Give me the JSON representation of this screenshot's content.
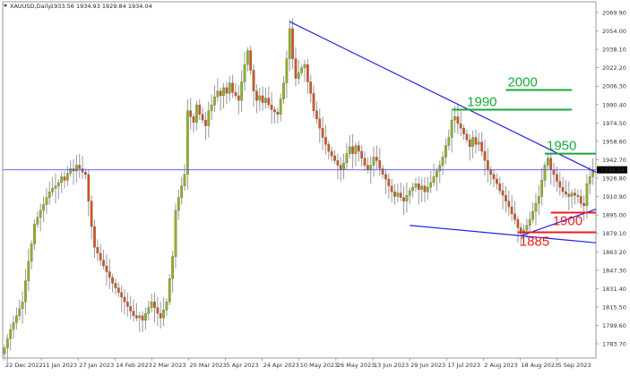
{
  "header": {
    "symbol": "XAUUSD,Daily",
    "ohlc": "1933.56 1934.93 1929.84 1934.04",
    "menu_icon": "triangle-down-icon"
  },
  "chart_data": {
    "type": "candlestick",
    "title": "XAUUSD,Daily",
    "ylim": [
      1775,
      2075
    ],
    "grid": false,
    "y_ticks": [
      "2069.90",
      "2054.00",
      "2038.10",
      "2022.20",
      "2006.30",
      "1990.40",
      "1974.50",
      "1958.60",
      "1942.70",
      "1926.80",
      "1910.90",
      "1895.00",
      "1879.10",
      "1863.20",
      "1847.30",
      "1831.40",
      "1815.50",
      "1799.60",
      "1783.70"
    ],
    "x_ticks": [
      "22 Dec 2022",
      "11 Jan 2023",
      "27 Jan 2023",
      "14 Feb 2023",
      "2 Mar 2023",
      "20 Mar 2023",
      "5 Apr 2023",
      "24 Apr 2023",
      "10 May 2023",
      "26 May 2023",
      "13 Jun 2023",
      "29 Jun 2023",
      "17 Jul 2023",
      "2 Aug 2023",
      "18 Aug 2023",
      "5 Sep 2023"
    ],
    "current_price": "1934.04",
    "closes": [
      1780,
      1788,
      1796,
      1802,
      1808,
      1814,
      1820,
      1838,
      1855,
      1870,
      1887,
      1893,
      1899,
      1904,
      1910,
      1915,
      1918,
      1920,
      1923,
      1928,
      1925,
      1931,
      1935,
      1933,
      1938,
      1935,
      1932,
      1930,
      1907,
      1885,
      1867,
      1862,
      1856,
      1851,
      1846,
      1841,
      1836,
      1832,
      1828,
      1824,
      1820,
      1816,
      1812,
      1808,
      1806,
      1808,
      1804,
      1810,
      1815,
      1820,
      1815,
      1810,
      1806,
      1813,
      1820,
      1840,
      1859,
      1899,
      1910,
      1920,
      1930,
      1985,
      1980,
      1975,
      1990,
      1982,
      1977,
      1972,
      1985,
      1990,
      1997,
      2002,
      1998,
      2005,
      2000,
      2009,
      2001,
      1998,
      1994,
      2010,
      2025,
      2037,
      2020,
      2002,
      1994,
      1998,
      1992,
      1996,
      1990,
      1986,
      1984,
      1982,
      1995,
      2009,
      2030,
      2056,
      2030,
      2013,
      2018,
      2022,
      2025,
      2010,
      2000,
      1985,
      1978,
      1970,
      1962,
      1956,
      1950,
      1946,
      1942,
      1938,
      1934,
      1940,
      1948,
      1954,
      1948,
      1955,
      1950,
      1944,
      1938,
      1934,
      1938,
      1945,
      1942,
      1935,
      1930,
      1926,
      1920,
      1915,
      1911,
      1914,
      1910,
      1907,
      1912,
      1916,
      1919,
      1922,
      1917,
      1920,
      1915,
      1919,
      1923,
      1928,
      1933,
      1938,
      1945,
      1955,
      1962,
      1977,
      1980,
      1974,
      1970,
      1965,
      1960,
      1954,
      1962,
      1956,
      1958,
      1950,
      1942,
      1934,
      1930,
      1926,
      1922,
      1916,
      1912,
      1907,
      1902,
      1896,
      1891,
      1884,
      1879,
      1882,
      1886,
      1891,
      1898,
      1905,
      1911,
      1925,
      1938,
      1944,
      1934,
      1930,
      1924,
      1919,
      1915,
      1913,
      1911,
      1914,
      1912,
      1911,
      1905,
      1903,
      1922,
      1928,
      1934
    ],
    "trendlines": [
      {
        "from": [
          95,
          2062
        ],
        "to": [
          197,
          1932
        ],
        "color": "#2222ee"
      },
      {
        "from": [
          135,
          1886
        ],
        "to": [
          197,
          1871
        ],
        "color": "#2222ee"
      },
      {
        "from": [
          172,
          1877
        ],
        "to": [
          197,
          1900
        ],
        "color": "#2222ee"
      }
    ],
    "levels": [
      {
        "label": "2000",
        "price": 2003,
        "from": 167,
        "to": 189,
        "color": "#1aa83a"
      },
      {
        "label": "1990",
        "price": 1986,
        "from": 149,
        "to": 189,
        "color": "#1aa83a"
      },
      {
        "label": "1950",
        "price": 1948,
        "from": 180,
        "to": 197,
        "color": "#1aa83a"
      },
      {
        "label": "1900",
        "price": 1897,
        "from": 182,
        "to": 197,
        "color": "#ee1c1c"
      },
      {
        "label": "1885",
        "price": 1880,
        "from": 171,
        "to": 197,
        "color": "#ee1c1c"
      }
    ],
    "colors": {
      "bull": "#8db51e",
      "bear": "#d9531e",
      "wick": "#999999",
      "price_line": "#5555ee"
    }
  }
}
